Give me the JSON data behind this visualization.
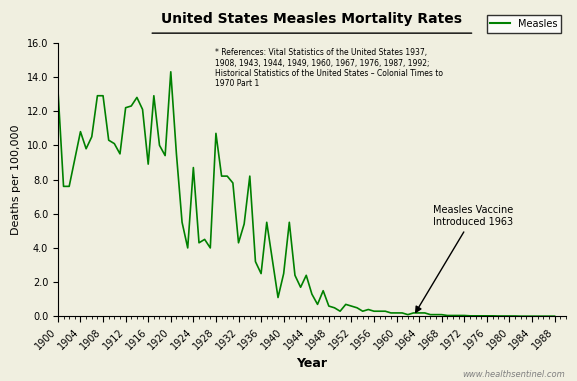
{
  "title": "United States Measles Mortality Rates",
  "xlabel": "Year",
  "ylabel": "Deaths per 100,000",
  "line_color": "#008000",
  "background_color": "#f0efe0",
  "ylim": [
    0,
    16.0
  ],
  "yticks": [
    0.0,
    2.0,
    4.0,
    6.0,
    8.0,
    10.0,
    12.0,
    14.0,
    16.0
  ],
  "xlim": [
    1900,
    1990
  ],
  "reference_text": "* References: Vital Statistics of the United States 1937,\n1908, 1943, 1944, 1949, 1960, 1967, 1976, 1987, 1992;\nHistorical Statistics of the United States – Colonial Times to\n1970 Part 1",
  "vaccine_annotation": "Measles Vaccine\nIntroduced 1963",
  "vaccine_year": 1963,
  "legend_label": "Measles",
  "watermark": "www.healthsentinel.com",
  "data": [
    [
      1900,
      13.3
    ],
    [
      1901,
      7.6
    ],
    [
      1902,
      7.6
    ],
    [
      1903,
      9.2
    ],
    [
      1904,
      10.8
    ],
    [
      1905,
      9.8
    ],
    [
      1906,
      10.5
    ],
    [
      1907,
      12.9
    ],
    [
      1908,
      12.9
    ],
    [
      1909,
      10.3
    ],
    [
      1910,
      10.1
    ],
    [
      1911,
      9.5
    ],
    [
      1912,
      12.2
    ],
    [
      1913,
      12.3
    ],
    [
      1914,
      12.8
    ],
    [
      1915,
      12.1
    ],
    [
      1916,
      8.9
    ],
    [
      1917,
      12.9
    ],
    [
      1918,
      10.0
    ],
    [
      1919,
      9.4
    ],
    [
      1920,
      14.3
    ],
    [
      1921,
      9.5
    ],
    [
      1922,
      5.5
    ],
    [
      1923,
      4.0
    ],
    [
      1924,
      8.7
    ],
    [
      1925,
      4.3
    ],
    [
      1926,
      4.5
    ],
    [
      1927,
      4.0
    ],
    [
      1928,
      10.7
    ],
    [
      1929,
      8.2
    ],
    [
      1930,
      8.2
    ],
    [
      1931,
      7.8
    ],
    [
      1932,
      4.3
    ],
    [
      1933,
      5.4
    ],
    [
      1934,
      8.2
    ],
    [
      1935,
      3.2
    ],
    [
      1936,
      2.5
    ],
    [
      1937,
      5.5
    ],
    [
      1938,
      3.3
    ],
    [
      1939,
      1.1
    ],
    [
      1940,
      2.5
    ],
    [
      1941,
      5.5
    ],
    [
      1942,
      2.4
    ],
    [
      1943,
      1.7
    ],
    [
      1944,
      2.4
    ],
    [
      1945,
      1.3
    ],
    [
      1946,
      0.7
    ],
    [
      1947,
      1.5
    ],
    [
      1948,
      0.6
    ],
    [
      1949,
      0.5
    ],
    [
      1950,
      0.3
    ],
    [
      1951,
      0.7
    ],
    [
      1952,
      0.6
    ],
    [
      1953,
      0.5
    ],
    [
      1954,
      0.3
    ],
    [
      1955,
      0.4
    ],
    [
      1956,
      0.3
    ],
    [
      1957,
      0.3
    ],
    [
      1958,
      0.3
    ],
    [
      1959,
      0.2
    ],
    [
      1960,
      0.2
    ],
    [
      1961,
      0.2
    ],
    [
      1962,
      0.1
    ],
    [
      1963,
      0.2
    ],
    [
      1964,
      0.2
    ],
    [
      1965,
      0.2
    ],
    [
      1966,
      0.1
    ],
    [
      1967,
      0.1
    ],
    [
      1968,
      0.1
    ],
    [
      1969,
      0.05
    ],
    [
      1970,
      0.05
    ],
    [
      1971,
      0.05
    ],
    [
      1972,
      0.05
    ],
    [
      1973,
      0.03
    ],
    [
      1974,
      0.03
    ],
    [
      1975,
      0.03
    ],
    [
      1976,
      0.03
    ],
    [
      1977,
      0.03
    ],
    [
      1978,
      0.02
    ],
    [
      1979,
      0.02
    ],
    [
      1980,
      0.02
    ],
    [
      1981,
      0.02
    ],
    [
      1982,
      0.01
    ],
    [
      1983,
      0.01
    ],
    [
      1984,
      0.01
    ],
    [
      1985,
      0.01
    ],
    [
      1986,
      0.01
    ],
    [
      1987,
      0.01
    ],
    [
      1988,
      0.01
    ]
  ]
}
